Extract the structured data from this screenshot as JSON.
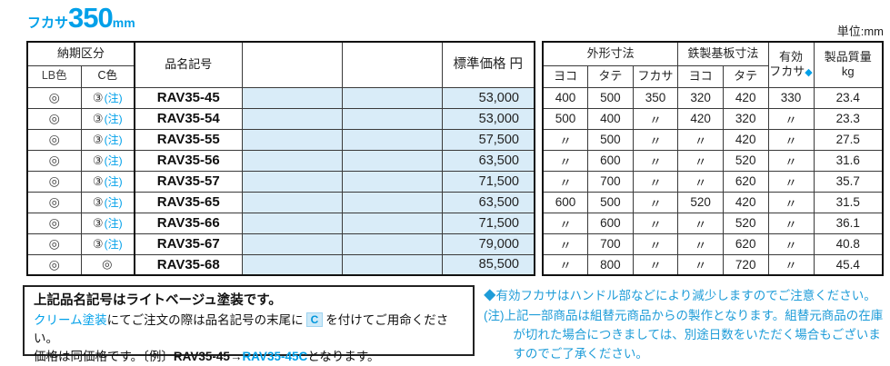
{
  "title": {
    "prefix": "フカサ",
    "value": "350",
    "unit": "mm"
  },
  "unit_note": "単位:mm",
  "colors": {
    "accent": "#00A0E9",
    "row_fill": "#D9ECF8",
    "border": "#111111"
  },
  "left_table": {
    "header": {
      "delivery_group": "納期区分",
      "lb_color": "LB色",
      "c_color": "C色",
      "product_code": "品名記号",
      "price": "標準価格 円"
    }
  },
  "right_table": {
    "header": {
      "outer_dims": "外形寸法",
      "yoko": "ヨコ",
      "tate": "タテ",
      "fukasa": "フカサ",
      "base_dims": "鉄製基板寸法",
      "base_yoko": "ヨコ",
      "base_tate": "タテ",
      "effective": "有効\nフカサ",
      "effective_diamond": "◆",
      "weight": "製品質量\nkg"
    }
  },
  "rows": [
    {
      "lb_mark": "◎",
      "c_mark": "③",
      "c_note": "(注)",
      "code": "RAV35-45",
      "price": "53,000",
      "w": "400",
      "h": "500",
      "d": "350",
      "bw": "320",
      "bh": "420",
      "ed": "330",
      "kg": "23.4"
    },
    {
      "lb_mark": "◎",
      "c_mark": "③",
      "c_note": "(注)",
      "code": "RAV35-54",
      "price": "53,000",
      "w": "500",
      "h": "400",
      "d": "〃",
      "bw": "420",
      "bh": "320",
      "ed": "〃",
      "kg": "23.3"
    },
    {
      "lb_mark": "◎",
      "c_mark": "③",
      "c_note": "(注)",
      "code": "RAV35-55",
      "price": "57,500",
      "w": "〃",
      "h": "500",
      "d": "〃",
      "bw": "〃",
      "bh": "420",
      "ed": "〃",
      "kg": "27.5"
    },
    {
      "lb_mark": "◎",
      "c_mark": "③",
      "c_note": "(注)",
      "code": "RAV35-56",
      "price": "63,500",
      "w": "〃",
      "h": "600",
      "d": "〃",
      "bw": "〃",
      "bh": "520",
      "ed": "〃",
      "kg": "31.6"
    },
    {
      "lb_mark": "◎",
      "c_mark": "③",
      "c_note": "(注)",
      "code": "RAV35-57",
      "price": "71,500",
      "w": "〃",
      "h": "700",
      "d": "〃",
      "bw": "〃",
      "bh": "620",
      "ed": "〃",
      "kg": "35.7"
    },
    {
      "lb_mark": "◎",
      "c_mark": "③",
      "c_note": "(注)",
      "code": "RAV35-65",
      "price": "63,500",
      "w": "600",
      "h": "500",
      "d": "〃",
      "bw": "520",
      "bh": "420",
      "ed": "〃",
      "kg": "31.5"
    },
    {
      "lb_mark": "◎",
      "c_mark": "③",
      "c_note": "(注)",
      "code": "RAV35-66",
      "price": "71,500",
      "w": "〃",
      "h": "600",
      "d": "〃",
      "bw": "〃",
      "bh": "520",
      "ed": "〃",
      "kg": "36.1"
    },
    {
      "lb_mark": "◎",
      "c_mark": "③",
      "c_note": "(注)",
      "code": "RAV35-67",
      "price": "79,000",
      "w": "〃",
      "h": "700",
      "d": "〃",
      "bw": "〃",
      "bh": "620",
      "ed": "〃",
      "kg": "40.8"
    },
    {
      "lb_mark": "◎",
      "c_mark": "◎",
      "c_note": "",
      "code": "RAV35-68",
      "price": "85,500",
      "w": "〃",
      "h": "800",
      "d": "〃",
      "bw": "〃",
      "bh": "720",
      "ed": "〃",
      "kg": "45.4"
    }
  ],
  "notes_left": {
    "line1": "上記品名記号はライトベージュ塗装です。",
    "line2_highlight": "クリーム塗装",
    "line2_mid": "にてご注文の際は品名記号の末尾に",
    "line2_badge": "C",
    "line2_end": "を付けてご用命ください。",
    "line3_start": "価格は同価格です。〔例〕",
    "line3_code": "RAV35-45",
    "line3_arrow": "→",
    "line3_code_c": "RAV35-45C",
    "line3_end": "となります。"
  },
  "notes_right": {
    "diamond": "◆",
    "line1": "有効フカサはハンドル部などにより減少しますのでご注意ください。",
    "note_label": "(注)",
    "note_text": "上記一部商品は組替元商品からの製作となります。組替元商品の在庫が切れた場合につきましては、別途日数をいただく場合もございますのでご了承ください。"
  }
}
